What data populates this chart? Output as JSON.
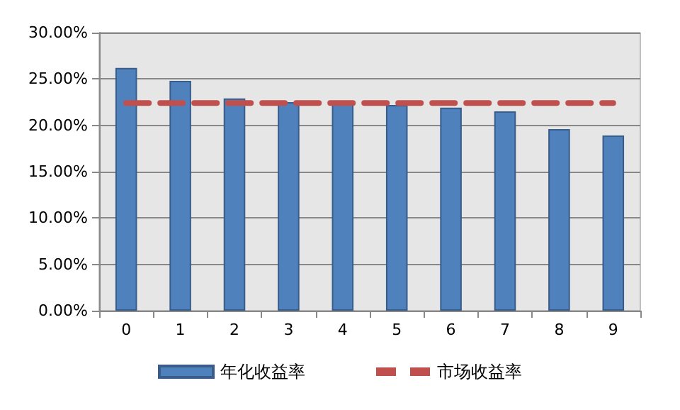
{
  "chart_data": {
    "type": "bar",
    "categories": [
      "0",
      "1",
      "2",
      "3",
      "4",
      "5",
      "6",
      "7",
      "8",
      "9"
    ],
    "series": [
      {
        "name": "年化收益率",
        "color": "#4f81bd",
        "values": [
          26.2,
          24.8,
          22.9,
          22.5,
          22.3,
          22.2,
          21.9,
          21.5,
          19.6,
          18.9
        ]
      },
      {
        "name": "市场收益率",
        "type": "line",
        "color": "#c0504d",
        "line_style": "dashed",
        "marker": "none",
        "values": [
          22.4,
          22.4,
          22.4,
          22.4,
          22.4,
          22.4,
          22.4,
          22.4,
          22.4,
          22.4
        ]
      }
    ],
    "ylim": [
      0,
      30
    ],
    "yticks": [
      {
        "value": 0,
        "label": "0.00%"
      },
      {
        "value": 5,
        "label": "5.00%"
      },
      {
        "value": 10,
        "label": "10.00%"
      },
      {
        "value": 15,
        "label": "15.00%"
      },
      {
        "value": 20,
        "label": "20.00%"
      },
      {
        "value": 25,
        "label": "25.00%"
      },
      {
        "value": 30,
        "label": "30.00%"
      }
    ],
    "grid": "y",
    "legend": "bottom"
  }
}
